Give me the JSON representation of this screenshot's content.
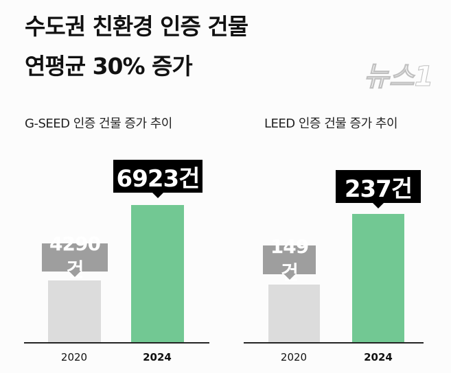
{
  "title_lines": [
    "수도권 친환경 인증 건물",
    "연평균 30% 증가"
  ],
  "watermark": "뉴스1",
  "colors": {
    "bar_2020": "#dcdcdc",
    "bar_2024": "#72c893",
    "label_2020": "#9e9e9e",
    "label_2024": "#000000"
  },
  "chart_data": [
    {
      "type": "bar",
      "title": "G-SEED 인증 건물 증가 추이",
      "categories": [
        "2020",
        "2024"
      ],
      "values": [
        4290,
        6923
      ],
      "data_labels": [
        "4290건",
        "6923건"
      ],
      "unit": "건"
    },
    {
      "type": "bar",
      "title": "LEED 인증 건물 증가 추이",
      "categories": [
        "2020",
        "2024"
      ],
      "values": [
        149,
        237
      ],
      "data_labels": [
        "149건",
        "237건"
      ],
      "unit": "건"
    }
  ]
}
